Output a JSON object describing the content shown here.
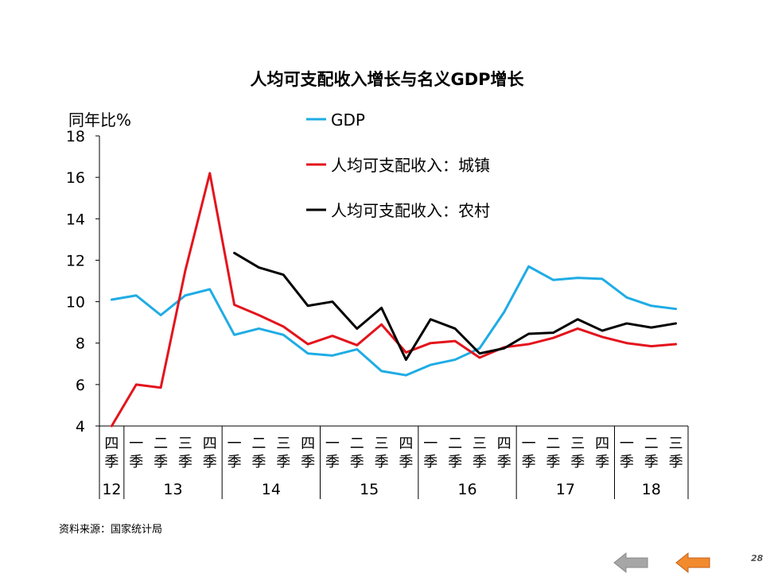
{
  "page": {
    "title": "人均可支配收入增长与名义GDP增长",
    "source": "资料来源：国家统计局",
    "page_number": "28"
  },
  "colors": {
    "gdp": "#1FACE5",
    "urban": "#E3141D",
    "rural": "#000000",
    "nav_prev": "#A6A6A6",
    "nav_next": "#F28A2E"
  },
  "nav": {
    "prev_icon": "left-arrow-icon",
    "next_icon": "left-arrow-icon"
  },
  "chart_data": {
    "type": "line",
    "title": "人均可支配收入增长与名义GDP增长",
    "ylabel": "同年比%",
    "ylim": [
      4,
      18
    ],
    "yticks": [
      4,
      6,
      8,
      10,
      12,
      14,
      16,
      18
    ],
    "grid": false,
    "legend_position": "top-center",
    "quarter_labels": [
      "四季",
      "一季",
      "二季",
      "三季",
      "四季",
      "一季",
      "二季",
      "三季",
      "四季",
      "一季",
      "二季",
      "三季",
      "四季",
      "一季",
      "二季",
      "三季",
      "四季",
      "一季",
      "二季",
      "三季",
      "四季",
      "一季",
      "二季",
      "三季"
    ],
    "years": [
      {
        "label": "12",
        "count": 1
      },
      {
        "label": "13",
        "count": 4
      },
      {
        "label": "14",
        "count": 4
      },
      {
        "label": "15",
        "count": 4
      },
      {
        "label": "16",
        "count": 4
      },
      {
        "label": "17",
        "count": 4
      },
      {
        "label": "18",
        "count": 3
      }
    ],
    "series": [
      {
        "name": "GDP",
        "color": "#1FACE5",
        "values": [
          10.1,
          10.3,
          9.35,
          10.3,
          10.6,
          8.4,
          8.7,
          8.4,
          7.5,
          7.4,
          7.7,
          6.65,
          6.45,
          6.95,
          7.2,
          7.75,
          9.5,
          11.7,
          11.05,
          11.15,
          11.1,
          10.2,
          9.8,
          9.65
        ]
      },
      {
        "name": "人均可支配收入：城镇",
        "color": "#E3141D",
        "values": [
          3.9,
          6.0,
          5.85,
          11.5,
          16.2,
          9.85,
          9.35,
          8.8,
          7.95,
          8.35,
          7.9,
          8.9,
          7.55,
          8.0,
          8.1,
          7.3,
          7.8,
          7.95,
          8.25,
          8.7,
          8.3,
          8.0,
          7.85,
          7.95
        ]
      },
      {
        "name": "人均可支配收入：农村",
        "color": "#000000",
        "values": [
          null,
          null,
          null,
          null,
          null,
          12.35,
          11.65,
          11.3,
          9.8,
          10.0,
          8.7,
          9.7,
          7.2,
          9.15,
          8.7,
          7.5,
          7.75,
          8.45,
          8.5,
          9.15,
          8.6,
          8.95,
          8.75,
          8.95
        ]
      }
    ]
  }
}
